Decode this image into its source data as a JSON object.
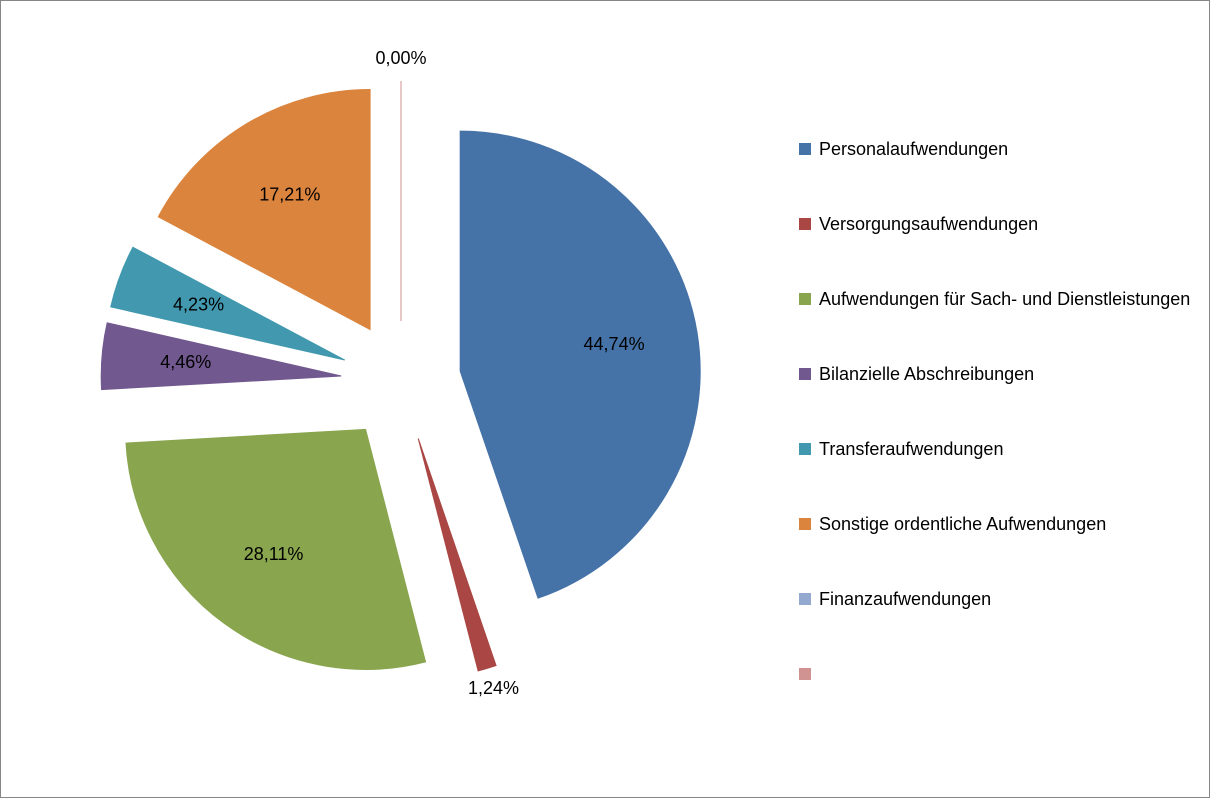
{
  "chart_data": {
    "type": "pie",
    "categories": [
      "Personalaufwendungen",
      "Versorgungsaufwendungen",
      "Aufwendungen für Sach- und Dienstleistungen",
      "Bilanzielle Abschreibungen",
      "Transferaufwendungen",
      "Sonstige ordentliche Aufwendungen",
      "Finanzaufwendungen",
      null
    ],
    "values": [
      44.74,
      1.24,
      28.11,
      4.46,
      4.23,
      17.21,
      0,
      0
    ],
    "value_labels": [
      "44,74%",
      "1,24%",
      "28,11%",
      "4,46%",
      "4,23%",
      "17,21%",
      "0,00%",
      null
    ],
    "colors": [
      "#4572a7",
      "#aa4643",
      "#89a54e",
      "#71588f",
      "#4198af",
      "#db843d",
      "#93a9cf",
      "#d19392"
    ],
    "exploded": true,
    "legend": "right"
  }
}
